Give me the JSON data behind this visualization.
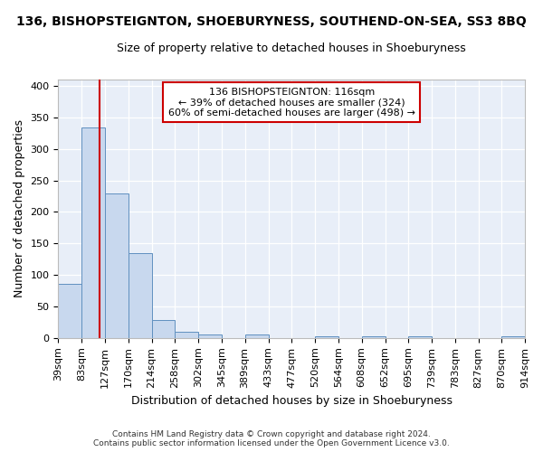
{
  "title": "136, BISHOPSTEIGNTON, SHOEBURYNESS, SOUTHEND-ON-SEA, SS3 8BQ",
  "subtitle": "Size of property relative to detached houses in Shoeburyness",
  "xlabel": "Distribution of detached houses by size in Shoeburyness",
  "ylabel": "Number of detached properties",
  "footer_line1": "Contains HM Land Registry data © Crown copyright and database right 2024.",
  "footer_line2": "Contains public sector information licensed under the Open Government Licence v3.0.",
  "annotation_line1": "136 BISHOPSTEIGNTON: 116sqm",
  "annotation_line2": "← 39% of detached houses are smaller (324)",
  "annotation_line3": "60% of semi-detached houses are larger (498) →",
  "property_size": 116,
  "bin_edges": [
    39,
    83,
    127,
    170,
    214,
    258,
    302,
    345,
    389,
    433,
    477,
    520,
    564,
    608,
    652,
    695,
    739,
    783,
    827,
    870,
    914
  ],
  "bar_values": [
    86,
    334,
    229,
    135,
    29,
    10,
    5,
    0,
    5,
    0,
    0,
    2,
    0,
    3,
    0,
    3,
    0,
    0,
    0,
    3
  ],
  "bar_color": "#c8d8ee",
  "bar_edgecolor": "#6090c0",
  "redline_color": "#cc0000",
  "annotation_box_edgecolor": "#cc0000",
  "figure_bg": "#ffffff",
  "axes_bg": "#e8eef8",
  "grid_color": "#ffffff",
  "ylim": [
    0,
    410
  ],
  "yticks": [
    0,
    50,
    100,
    150,
    200,
    250,
    300,
    350,
    400
  ],
  "tick_fontsize": 8,
  "label_fontsize": 9,
  "title_fontsize": 10,
  "subtitle_fontsize": 9
}
